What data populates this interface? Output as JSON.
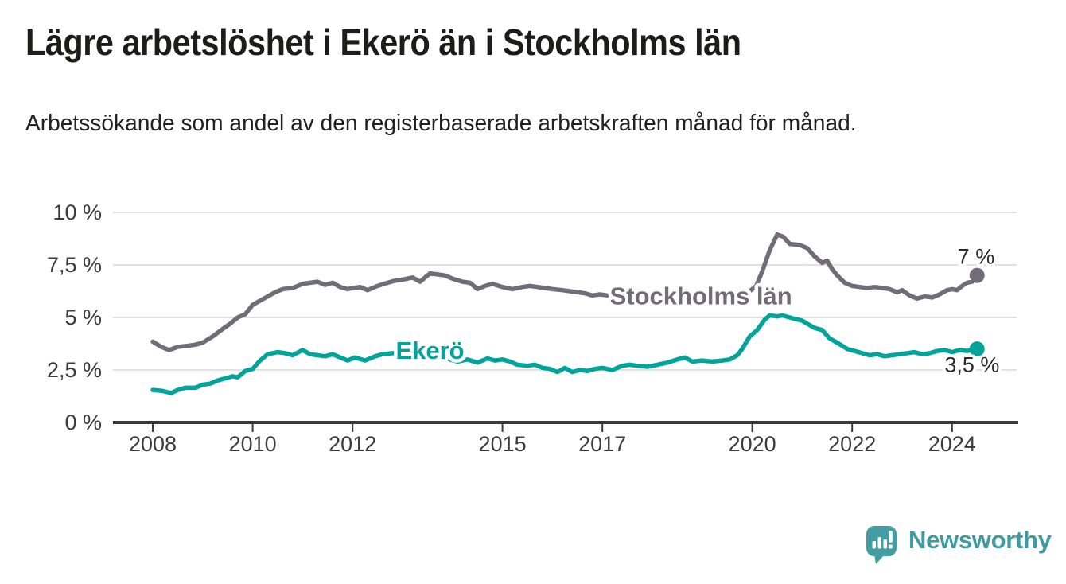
{
  "page": {
    "title": "Lägre arbetslöshet i Ekerö än i Stockholms län",
    "subtitle": "Arbetssökande som andel av den registerbaserade arbetskraften månad för månad."
  },
  "branding": {
    "name": "Newsworthy",
    "icon": "newsworthy-bar-chart-bubble-icon",
    "icon_color": "#429ea3",
    "text_color": "#3f9ba1"
  },
  "colors": {
    "stockholm_line": "#716d78",
    "ekero_line": "#00a49a",
    "grid": "#d9d9d9",
    "axis": "#3a3a3a",
    "axis_text": "#3c3c3c",
    "end_label_text": "#2b2b2b",
    "background": "#ffffff"
  },
  "chart_data": {
    "type": "line",
    "title": "Lägre arbetslöshet i Ekerö än i Stockholms län",
    "subtitle": "Arbetssökande som andel av den registerbaserade arbetskraften månad för månad.",
    "unit": "%",
    "grid": true,
    "legend_position": "inline-labels",
    "x_axis": {
      "range": [
        2007.2,
        2025.3
      ],
      "ticks": [
        {
          "value": 2008,
          "label": "2008"
        },
        {
          "value": 2010,
          "label": "2010"
        },
        {
          "value": 2012,
          "label": "2012"
        },
        {
          "value": 2015,
          "label": "2015"
        },
        {
          "value": 2017,
          "label": "2017"
        },
        {
          "value": 2020,
          "label": "2020"
        },
        {
          "value": 2022,
          "label": "2022"
        },
        {
          "value": 2024,
          "label": "2024"
        }
      ]
    },
    "y_axis": {
      "range": [
        0,
        10
      ],
      "ticks": [
        {
          "value": 0,
          "label": "0 %"
        },
        {
          "value": 2.5,
          "label": "2,5 %"
        },
        {
          "value": 5,
          "label": "5 %"
        },
        {
          "value": 7.5,
          "label": "7,5 %"
        },
        {
          "value": 10,
          "label": "10 %"
        }
      ]
    },
    "series": [
      {
        "name": "Stockholms län",
        "color": "#716d78",
        "inline_label": {
          "text": "Stockholms län",
          "x": 2017.15,
          "y": 6.0,
          "anchor": "start"
        },
        "end_label": {
          "text": "7 %",
          "x": 2024.48,
          "y": 7.9,
          "anchor": "middle"
        },
        "end_dot": true,
        "points": [
          [
            2008.0,
            3.85
          ],
          [
            2008.17,
            3.6
          ],
          [
            2008.33,
            3.45
          ],
          [
            2008.5,
            3.6
          ],
          [
            2008.7,
            3.65
          ],
          [
            2008.85,
            3.7
          ],
          [
            2009.0,
            3.8
          ],
          [
            2009.2,
            4.1
          ],
          [
            2009.4,
            4.45
          ],
          [
            2009.55,
            4.7
          ],
          [
            2009.7,
            5.0
          ],
          [
            2009.85,
            5.15
          ],
          [
            2010.0,
            5.6
          ],
          [
            2010.15,
            5.8
          ],
          [
            2010.3,
            6.0
          ],
          [
            2010.45,
            6.2
          ],
          [
            2010.6,
            6.35
          ],
          [
            2010.8,
            6.4
          ],
          [
            2011.0,
            6.6
          ],
          [
            2011.15,
            6.65
          ],
          [
            2011.3,
            6.7
          ],
          [
            2011.45,
            6.55
          ],
          [
            2011.6,
            6.65
          ],
          [
            2011.75,
            6.45
          ],
          [
            2011.9,
            6.35
          ],
          [
            2012.0,
            6.4
          ],
          [
            2012.15,
            6.45
          ],
          [
            2012.3,
            6.3
          ],
          [
            2012.5,
            6.5
          ],
          [
            2012.7,
            6.65
          ],
          [
            2012.85,
            6.75
          ],
          [
            2013.0,
            6.8
          ],
          [
            2013.2,
            6.9
          ],
          [
            2013.35,
            6.7
          ],
          [
            2013.55,
            7.1
          ],
          [
            2013.7,
            7.05
          ],
          [
            2013.85,
            7.0
          ],
          [
            2014.0,
            6.85
          ],
          [
            2014.2,
            6.7
          ],
          [
            2014.35,
            6.65
          ],
          [
            2014.5,
            6.35
          ],
          [
            2014.65,
            6.5
          ],
          [
            2014.8,
            6.6
          ],
          [
            2015.0,
            6.45
          ],
          [
            2015.2,
            6.35
          ],
          [
            2015.4,
            6.45
          ],
          [
            2015.55,
            6.5
          ],
          [
            2015.7,
            6.45
          ],
          [
            2015.85,
            6.4
          ],
          [
            2016.0,
            6.35
          ],
          [
            2016.2,
            6.3
          ],
          [
            2016.35,
            6.25
          ],
          [
            2016.5,
            6.2
          ],
          [
            2016.65,
            6.15
          ],
          [
            2016.8,
            6.05
          ],
          [
            2016.95,
            6.1
          ],
          [
            2017.1,
            6.05
          ],
          [
            2017.4,
            5.95
          ],
          [
            2017.7,
            5.9
          ],
          [
            2018.0,
            5.85
          ],
          [
            2018.3,
            5.8
          ],
          [
            2018.6,
            5.75
          ],
          [
            2018.9,
            5.85
          ],
          [
            2019.2,
            5.95
          ],
          [
            2019.5,
            6.0
          ],
          [
            2019.75,
            6.1
          ],
          [
            2019.95,
            6.25
          ],
          [
            2020.08,
            6.5
          ],
          [
            2020.2,
            7.2
          ],
          [
            2020.35,
            8.2
          ],
          [
            2020.5,
            8.95
          ],
          [
            2020.62,
            8.85
          ],
          [
            2020.75,
            8.5
          ],
          [
            2020.95,
            8.45
          ],
          [
            2021.1,
            8.3
          ],
          [
            2021.25,
            7.9
          ],
          [
            2021.4,
            7.6
          ],
          [
            2021.5,
            7.7
          ],
          [
            2021.6,
            7.3
          ],
          [
            2021.7,
            7.0
          ],
          [
            2021.85,
            6.65
          ],
          [
            2022.0,
            6.5
          ],
          [
            2022.15,
            6.45
          ],
          [
            2022.3,
            6.4
          ],
          [
            2022.45,
            6.45
          ],
          [
            2022.6,
            6.4
          ],
          [
            2022.75,
            6.35
          ],
          [
            2022.9,
            6.2
          ],
          [
            2023.0,
            6.3
          ],
          [
            2023.15,
            6.05
          ],
          [
            2023.3,
            5.9
          ],
          [
            2023.45,
            6.0
          ],
          [
            2023.6,
            5.95
          ],
          [
            2023.75,
            6.1
          ],
          [
            2023.9,
            6.3
          ],
          [
            2024.0,
            6.35
          ],
          [
            2024.1,
            6.3
          ],
          [
            2024.2,
            6.5
          ],
          [
            2024.3,
            6.65
          ],
          [
            2024.4,
            6.7
          ],
          [
            2024.5,
            7.0
          ]
        ]
      },
      {
        "name": "Ekerö",
        "color": "#00a49a",
        "inline_label": {
          "text": "Ekerö",
          "x": 2013.55,
          "y": 3.4,
          "anchor": "middle"
        },
        "end_label": {
          "text": "3,5 %",
          "x": 2024.4,
          "y": 2.75,
          "anchor": "middle"
        },
        "end_dot": true,
        "points": [
          [
            2008.0,
            1.55
          ],
          [
            2008.2,
            1.5
          ],
          [
            2008.37,
            1.4
          ],
          [
            2008.5,
            1.55
          ],
          [
            2008.65,
            1.65
          ],
          [
            2008.85,
            1.65
          ],
          [
            2009.0,
            1.8
          ],
          [
            2009.15,
            1.85
          ],
          [
            2009.3,
            2.0
          ],
          [
            2009.45,
            2.1
          ],
          [
            2009.6,
            2.2
          ],
          [
            2009.7,
            2.15
          ],
          [
            2009.85,
            2.45
          ],
          [
            2010.0,
            2.55
          ],
          [
            2010.15,
            2.95
          ],
          [
            2010.3,
            3.25
          ],
          [
            2010.5,
            3.35
          ],
          [
            2010.65,
            3.3
          ],
          [
            2010.8,
            3.2
          ],
          [
            2011.0,
            3.45
          ],
          [
            2011.15,
            3.25
          ],
          [
            2011.3,
            3.2
          ],
          [
            2011.45,
            3.15
          ],
          [
            2011.6,
            3.25
          ],
          [
            2011.75,
            3.1
          ],
          [
            2011.9,
            2.95
          ],
          [
            2012.05,
            3.1
          ],
          [
            2012.25,
            2.95
          ],
          [
            2012.45,
            3.15
          ],
          [
            2012.6,
            3.25
          ],
          [
            2012.8,
            3.3
          ],
          [
            2013.0,
            3.3
          ],
          [
            2013.15,
            3.35
          ],
          [
            2013.35,
            3.3
          ],
          [
            2013.55,
            3.25
          ],
          [
            2013.75,
            3.15
          ],
          [
            2013.95,
            3.0
          ],
          [
            2014.1,
            2.9
          ],
          [
            2014.3,
            3.0
          ],
          [
            2014.5,
            2.85
          ],
          [
            2014.7,
            3.05
          ],
          [
            2014.85,
            2.95
          ],
          [
            2015.0,
            3.0
          ],
          [
            2015.15,
            2.9
          ],
          [
            2015.3,
            2.75
          ],
          [
            2015.5,
            2.7
          ],
          [
            2015.65,
            2.75
          ],
          [
            2015.8,
            2.6
          ],
          [
            2015.95,
            2.55
          ],
          [
            2016.1,
            2.4
          ],
          [
            2016.25,
            2.6
          ],
          [
            2016.4,
            2.4
          ],
          [
            2016.55,
            2.5
          ],
          [
            2016.7,
            2.45
          ],
          [
            2016.85,
            2.55
          ],
          [
            2017.0,
            2.6
          ],
          [
            2017.2,
            2.5
          ],
          [
            2017.4,
            2.7
          ],
          [
            2017.55,
            2.75
          ],
          [
            2017.7,
            2.7
          ],
          [
            2017.9,
            2.65
          ],
          [
            2018.1,
            2.75
          ],
          [
            2018.3,
            2.85
          ],
          [
            2018.5,
            3.0
          ],
          [
            2018.65,
            3.1
          ],
          [
            2018.8,
            2.9
          ],
          [
            2019.0,
            2.95
          ],
          [
            2019.2,
            2.9
          ],
          [
            2019.4,
            2.95
          ],
          [
            2019.55,
            3.0
          ],
          [
            2019.7,
            3.2
          ],
          [
            2019.8,
            3.5
          ],
          [
            2019.95,
            4.1
          ],
          [
            2020.1,
            4.4
          ],
          [
            2020.25,
            4.9
          ],
          [
            2020.35,
            5.1
          ],
          [
            2020.5,
            5.05
          ],
          [
            2020.6,
            5.1
          ],
          [
            2020.75,
            5.0
          ],
          [
            2020.9,
            4.9
          ],
          [
            2021.0,
            4.85
          ],
          [
            2021.1,
            4.7
          ],
          [
            2021.25,
            4.5
          ],
          [
            2021.4,
            4.4
          ],
          [
            2021.55,
            4.0
          ],
          [
            2021.7,
            3.8
          ],
          [
            2021.9,
            3.5
          ],
          [
            2022.05,
            3.4
          ],
          [
            2022.2,
            3.3
          ],
          [
            2022.35,
            3.2
          ],
          [
            2022.5,
            3.25
          ],
          [
            2022.65,
            3.15
          ],
          [
            2022.8,
            3.2
          ],
          [
            2022.95,
            3.25
          ],
          [
            2023.1,
            3.3
          ],
          [
            2023.25,
            3.35
          ],
          [
            2023.4,
            3.25
          ],
          [
            2023.55,
            3.3
          ],
          [
            2023.7,
            3.4
          ],
          [
            2023.85,
            3.45
          ],
          [
            2024.0,
            3.35
          ],
          [
            2024.15,
            3.45
          ],
          [
            2024.3,
            3.4
          ],
          [
            2024.4,
            3.45
          ],
          [
            2024.5,
            3.5
          ]
        ]
      }
    ]
  }
}
